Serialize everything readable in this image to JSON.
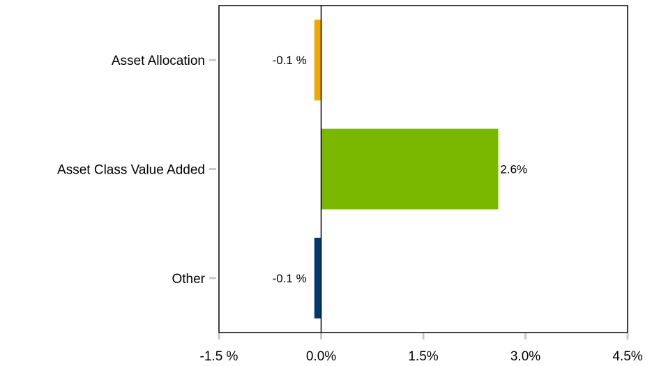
{
  "chart_data": {
    "type": "bar",
    "orientation": "horizontal",
    "categories": [
      "Asset Allocation",
      "Asset Class Value Added",
      "Other"
    ],
    "values": [
      -0.1,
      2.6,
      -0.1
    ],
    "data_labels": [
      "-0.1 %",
      "2.6%",
      "-0.1 %"
    ],
    "colors": [
      "#F0A800",
      "#7AB800",
      "#003A70"
    ],
    "xlim": [
      -1.5,
      4.5
    ],
    "xticks": [
      -1.5,
      0,
      1.5,
      3.0,
      4.5
    ],
    "xtick_labels": [
      "-1.5 %",
      "0.0%",
      "1.5%",
      "3.0%",
      "4.5%"
    ],
    "grid": false,
    "legend": "none"
  }
}
